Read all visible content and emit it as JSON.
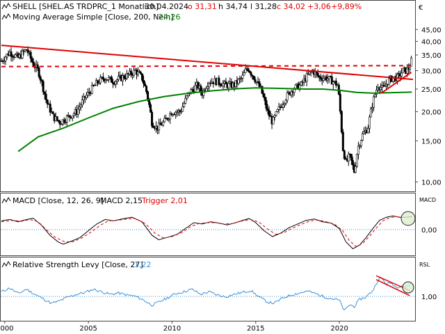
{
  "header": {
    "main_title": "SHELL [SHEL.AS TRDPRC_1 Monatlich]",
    "date": "30.04.2024",
    "o": "o 31,31",
    "h": "h 34,74",
    "l": "l 31,28",
    "c": "c 34,02",
    "chg": "+3,06",
    "chg_pct": "+9,89%",
    "ma_label": "Moving Average Simple [Close, 200, Nein]",
    "ma_value": "24,26",
    "currency": "€",
    "macd_label": "MACD [Close, 12, 26, 9]",
    "macd_value": "MACD 2,15",
    "trigger_value": "Trigger 2,01",
    "macd_axis_title": "MACD",
    "rsl_label": "Relative Strength Levy [Close, 27]",
    "rsl_value": "1,22",
    "rsl_axis_title": "RSL"
  },
  "colors": {
    "price": "#000000",
    "ma": "#008000",
    "trend": "#e00000",
    "macd": "#000000",
    "trigger": "#e00000",
    "rsl": "#3c8fd6",
    "zero": "#3c8fd6",
    "chg": "#e00000"
  },
  "chart_data": [
    {
      "type": "candlestick",
      "title": "SHELL [SHEL.AS TRDPRC_1 Monatlich]",
      "y_scale": "log",
      "ylim": [
        9.3,
        48
      ],
      "y_ticks": [
        "45,00",
        "40,00",
        "35,00",
        "30,00",
        "25,00",
        "20,00",
        "15,00",
        "10,00"
      ],
      "x_ticks": [
        "2000",
        "2005",
        "2010",
        "2015",
        "2020"
      ],
      "x_range": [
        1999.8,
        2024.4
      ],
      "close_anchors": [
        [
          1999.8,
          33
        ],
        [
          2000.3,
          36
        ],
        [
          2000.8,
          34
        ],
        [
          2001.3,
          37
        ],
        [
          2001.7,
          32
        ],
        [
          2002.0,
          30
        ],
        [
          2002.5,
          22
        ],
        [
          2002.9,
          19
        ],
        [
          2003.3,
          18
        ],
        [
          2003.8,
          19
        ],
        [
          2004.3,
          20
        ],
        [
          2004.8,
          23
        ],
        [
          2005.2,
          25
        ],
        [
          2005.6,
          27
        ],
        [
          2006.0,
          28
        ],
        [
          2006.5,
          27
        ],
        [
          2007.0,
          28
        ],
        [
          2007.5,
          29
        ],
        [
          2007.8,
          30
        ],
        [
          2008.2,
          28
        ],
        [
          2008.5,
          24
        ],
        [
          2008.8,
          18
        ],
        [
          2009.1,
          17
        ],
        [
          2009.5,
          18
        ],
        [
          2010.0,
          20
        ],
        [
          2010.5,
          20
        ],
        [
          2011.0,
          24
        ],
        [
          2011.5,
          26
        ],
        [
          2011.8,
          24
        ],
        [
          2012.2,
          27
        ],
        [
          2012.7,
          27
        ],
        [
          2013.2,
          26
        ],
        [
          2013.7,
          26
        ],
        [
          2014.2,
          28
        ],
        [
          2014.5,
          31
        ],
        [
          2014.9,
          28
        ],
        [
          2015.3,
          25
        ],
        [
          2015.7,
          20
        ],
        [
          2016.0,
          18
        ],
        [
          2016.3,
          20
        ],
        [
          2016.8,
          23
        ],
        [
          2017.2,
          25
        ],
        [
          2017.7,
          26
        ],
        [
          2018.0,
          28
        ],
        [
          2018.4,
          30
        ],
        [
          2018.8,
          28
        ],
        [
          2019.2,
          28
        ],
        [
          2019.6,
          27
        ],
        [
          2019.9,
          26
        ],
        [
          2020.2,
          14
        ],
        [
          2020.4,
          12
        ],
        [
          2020.6,
          13
        ],
        [
          2020.9,
          11
        ],
        [
          2021.1,
          14
        ],
        [
          2021.4,
          16
        ],
        [
          2021.7,
          17
        ],
        [
          2022.0,
          22
        ],
        [
          2022.3,
          26
        ],
        [
          2022.6,
          25
        ],
        [
          2022.9,
          27
        ],
        [
          2023.2,
          28
        ],
        [
          2023.5,
          28
        ],
        [
          2023.8,
          30
        ],
        [
          2024.0,
          30
        ],
        [
          2024.2,
          31
        ],
        [
          2024.33,
          34.02
        ]
      ],
      "last_bar": {
        "open": 31.31,
        "high": 34.74,
        "low": 31.28,
        "close": 34.02
      },
      "moving_average": {
        "name": "Moving Average Simple [Close, 200, Nein]",
        "values": [
          [
            2000.8,
            13.5
          ],
          [
            2002.0,
            15.6
          ],
          [
            2003.5,
            17.0
          ],
          [
            2005.0,
            18.8
          ],
          [
            2006.5,
            20.7
          ],
          [
            2008.0,
            22.1
          ],
          [
            2009.5,
            23.2
          ],
          [
            2011.0,
            24.0
          ],
          [
            2012.5,
            24.6
          ],
          [
            2014.0,
            25.1
          ],
          [
            2015.0,
            25.3
          ],
          [
            2016.0,
            25.2
          ],
          [
            2017.0,
            25.1
          ],
          [
            2018.0,
            25.0
          ],
          [
            2019.0,
            25.0
          ],
          [
            2020.0,
            24.7
          ],
          [
            2021.0,
            24.2
          ],
          [
            2022.0,
            24.0
          ],
          [
            2023.0,
            24.1
          ],
          [
            2024.33,
            24.26
          ]
        ]
      },
      "trend_lines": [
        {
          "style": "solid",
          "points": [
            [
              1999.8,
              38.5
            ],
            [
              2024.4,
              27.5
            ]
          ]
        },
        {
          "style": "dashed",
          "points": [
            [
              1999.8,
              31.2
            ],
            [
              2024.4,
              31.5
            ]
          ]
        },
        {
          "style": "solid",
          "points": [
            [
              2022.5,
              24.0
            ],
            [
              2024.3,
              29.5
            ]
          ]
        }
      ]
    },
    {
      "type": "line",
      "title": "MACD [Close, 12, 26, 9]",
      "ylim": [
        -6,
        4.5
      ],
      "y_ticks": [
        "0,00"
      ],
      "x_range": [
        1999.8,
        2024.4
      ],
      "series": [
        {
          "name": "MACD",
          "values": [
            [
              1999.8,
              1.2
            ],
            [
              2000.3,
              1.5
            ],
            [
              2000.8,
              1.0
            ],
            [
              2001.2,
              1.4
            ],
            [
              2001.7,
              1.8
            ],
            [
              2002.2,
              0.2
            ],
            [
              2002.7,
              -2.0
            ],
            [
              2003.2,
              -3.5
            ],
            [
              2003.5,
              -4.0
            ],
            [
              2004.0,
              -3.3
            ],
            [
              2004.5,
              -2.5
            ],
            [
              2005.0,
              -1.0
            ],
            [
              2005.5,
              0.5
            ],
            [
              2006.0,
              1.5
            ],
            [
              2006.5,
              1.2
            ],
            [
              2007.0,
              1.6
            ],
            [
              2007.6,
              2.0
            ],
            [
              2008.2,
              1.0
            ],
            [
              2008.8,
              -2.0
            ],
            [
              2009.2,
              -3.0
            ],
            [
              2009.7,
              -2.5
            ],
            [
              2010.3,
              -1.8
            ],
            [
              2010.8,
              -0.5
            ],
            [
              2011.3,
              0.8
            ],
            [
              2011.8,
              0.5
            ],
            [
              2012.3,
              1.0
            ],
            [
              2012.8,
              0.7
            ],
            [
              2013.3,
              0.3
            ],
            [
              2013.8,
              0.8
            ],
            [
              2014.3,
              1.4
            ],
            [
              2014.6,
              1.7
            ],
            [
              2015.0,
              0.8
            ],
            [
              2015.5,
              -1.0
            ],
            [
              2016.0,
              -2.3
            ],
            [
              2016.5,
              -1.5
            ],
            [
              2017.0,
              -0.3
            ],
            [
              2017.5,
              0.5
            ],
            [
              2018.0,
              1.3
            ],
            [
              2018.5,
              1.6
            ],
            [
              2019.0,
              1.0
            ],
            [
              2019.5,
              0.7
            ],
            [
              2020.0,
              -0.5
            ],
            [
              2020.4,
              -3.5
            ],
            [
              2020.8,
              -5.0
            ],
            [
              2021.2,
              -4.2
            ],
            [
              2021.6,
              -2.5
            ],
            [
              2022.0,
              -0.5
            ],
            [
              2022.4,
              1.3
            ],
            [
              2022.8,
              2.0
            ],
            [
              2023.2,
              2.3
            ],
            [
              2023.6,
              2.0
            ],
            [
              2024.0,
              2.0
            ],
            [
              2024.33,
              2.15
            ]
          ]
        },
        {
          "name": "Trigger",
          "values": [
            [
              1999.8,
              1.0
            ],
            [
              2000.5,
              1.3
            ],
            [
              2001.0,
              1.1
            ],
            [
              2001.5,
              1.5
            ],
            [
              2002.0,
              1.0
            ],
            [
              2002.5,
              -0.8
            ],
            [
              2003.0,
              -2.4
            ],
            [
              2003.6,
              -3.5
            ],
            [
              2004.1,
              -3.4
            ],
            [
              2004.6,
              -2.6
            ],
            [
              2005.2,
              -1.2
            ],
            [
              2005.7,
              0.2
            ],
            [
              2006.2,
              1.2
            ],
            [
              2006.7,
              1.3
            ],
            [
              2007.3,
              1.6
            ],
            [
              2007.8,
              1.7
            ],
            [
              2008.4,
              0.6
            ],
            [
              2009.0,
              -1.6
            ],
            [
              2009.5,
              -2.6
            ],
            [
              2010.0,
              -2.3
            ],
            [
              2010.6,
              -1.4
            ],
            [
              2011.1,
              -0.1
            ],
            [
              2011.6,
              0.6
            ],
            [
              2012.1,
              0.8
            ],
            [
              2012.6,
              0.8
            ],
            [
              2013.1,
              0.5
            ],
            [
              2013.6,
              0.6
            ],
            [
              2014.1,
              1.1
            ],
            [
              2014.7,
              1.5
            ],
            [
              2015.2,
              0.9
            ],
            [
              2015.7,
              -0.6
            ],
            [
              2016.2,
              -1.8
            ],
            [
              2016.7,
              -1.4
            ],
            [
              2017.2,
              -0.4
            ],
            [
              2017.7,
              0.4
            ],
            [
              2018.2,
              1.1
            ],
            [
              2018.7,
              1.4
            ],
            [
              2019.2,
              1.0
            ],
            [
              2019.7,
              0.5
            ],
            [
              2020.2,
              -1.0
            ],
            [
              2020.6,
              -3.2
            ],
            [
              2021.0,
              -4.5
            ],
            [
              2021.4,
              -3.8
            ],
            [
              2021.8,
              -2.2
            ],
            [
              2022.2,
              -0.4
            ],
            [
              2022.6,
              1.2
            ],
            [
              2023.0,
              1.9
            ],
            [
              2023.4,
              2.1
            ],
            [
              2023.8,
              2.0
            ],
            [
              2024.33,
              2.01
            ]
          ]
        }
      ]
    },
    {
      "type": "line",
      "title": "Relative Strength Levy [Close, 27]",
      "ylim": [
        0.66,
        1.42
      ],
      "y_ticks": [
        "1,00"
      ],
      "x_ticks": [
        "2000",
        "2005",
        "2010",
        "2015",
        "2020"
      ],
      "x_range": [
        1999.8,
        2024.4
      ],
      "series": [
        {
          "name": "Relative Strength Levy",
          "values": [
            [
              1999.8,
              1.08
            ],
            [
              2000.3,
              1.14
            ],
            [
              2000.8,
              1.05
            ],
            [
              2001.3,
              1.12
            ],
            [
              2001.8,
              1.04
            ],
            [
              2002.3,
              0.97
            ],
            [
              2002.8,
              0.9
            ],
            [
              2003.2,
              0.93
            ],
            [
              2003.8,
              1.0
            ],
            [
              2004.3,
              1.04
            ],
            [
              2004.8,
              1.07
            ],
            [
              2005.3,
              1.12
            ],
            [
              2005.8,
              1.08
            ],
            [
              2006.3,
              1.04
            ],
            [
              2006.8,
              1.06
            ],
            [
              2007.3,
              1.03
            ],
            [
              2007.8,
              1.01
            ],
            [
              2008.3,
              0.95
            ],
            [
              2008.8,
              0.87
            ],
            [
              2009.2,
              0.92
            ],
            [
              2009.7,
              0.98
            ],
            [
              2010.2,
              1.05
            ],
            [
              2010.7,
              1.08
            ],
            [
              2011.2,
              1.12
            ],
            [
              2011.7,
              1.04
            ],
            [
              2012.2,
              1.08
            ],
            [
              2012.7,
              1.03
            ],
            [
              2013.2,
              1.0
            ],
            [
              2013.7,
              1.04
            ],
            [
              2014.2,
              1.07
            ],
            [
              2014.7,
              1.1
            ],
            [
              2015.2,
              1.0
            ],
            [
              2015.7,
              0.92
            ],
            [
              2016.1,
              0.9
            ],
            [
              2016.6,
              0.98
            ],
            [
              2017.1,
              1.03
            ],
            [
              2017.6,
              1.06
            ],
            [
              2018.1,
              1.09
            ],
            [
              2018.6,
              1.05
            ],
            [
              2019.1,
              1.0
            ],
            [
              2019.6,
              0.97
            ],
            [
              2020.0,
              0.95
            ],
            [
              2020.3,
              0.78
            ],
            [
              2020.6,
              0.88
            ],
            [
              2020.9,
              0.85
            ],
            [
              2021.2,
              0.96
            ],
            [
              2021.6,
              1.0
            ],
            [
              2022.0,
              1.1
            ],
            [
              2022.3,
              1.26
            ],
            [
              2022.5,
              1.3
            ],
            [
              2022.8,
              1.2
            ],
            [
              2023.1,
              1.22
            ],
            [
              2023.4,
              1.15
            ],
            [
              2023.7,
              1.18
            ],
            [
              2024.0,
              1.15
            ],
            [
              2024.33,
              1.22
            ]
          ]
        }
      ],
      "trend_lines": [
        {
          "points": [
            [
              2022.2,
              1.33
            ],
            [
              2024.2,
              1.1
            ]
          ]
        },
        {
          "points": [
            [
              2022.2,
              1.27
            ],
            [
              2024.2,
              1.02
            ]
          ]
        }
      ]
    }
  ]
}
